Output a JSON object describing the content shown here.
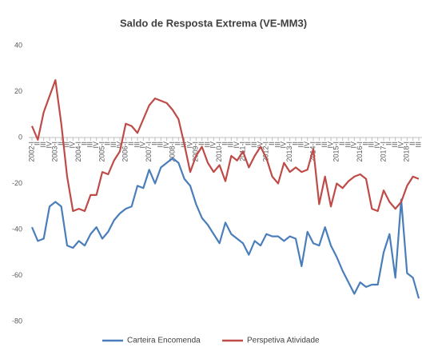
{
  "chart_data": {
    "type": "line",
    "title": "Saldo de Resposta Extrema (VE-MM3)",
    "categories": [
      "2002-I",
      "II",
      "III",
      "IV",
      "2003-I",
      "II",
      "III",
      "IV",
      "2004-I",
      "II",
      "III",
      "IV",
      "2005-I",
      "II",
      "III",
      "IV",
      "2006-I",
      "II",
      "III",
      "IV",
      "2007-I",
      "II",
      "III",
      "IV",
      "2008-I",
      "II",
      "III",
      "IV",
      "2009-I",
      "II",
      "III",
      "IV",
      "2010-I",
      "II",
      "III",
      "IV",
      "2011-I",
      "II",
      "III",
      "IV",
      "2012-I",
      "II",
      "III",
      "IV",
      "2013-I",
      "II",
      "III",
      "IV",
      "2014-I",
      "II",
      "III",
      "IV",
      "2015-I",
      "II",
      "III",
      "IV",
      "2016-I",
      "II",
      "III",
      "IV",
      "2017-I",
      "II",
      "III",
      "IV",
      "2018-I",
      "II",
      "III"
    ],
    "series": [
      {
        "name": "Carteira Encomenda",
        "color": "#4a7ebb",
        "values": [
          -39,
          -45,
          -44,
          -30,
          -28,
          -30,
          -47,
          -48,
          -45,
          -47,
          -42,
          -39,
          -44,
          -41,
          -36,
          -33,
          -31,
          -30,
          -21,
          -22,
          -14,
          -20,
          -13,
          -11,
          -9,
          -11,
          -18,
          -21,
          -29,
          -35,
          -38,
          -42,
          -46,
          -37,
          -42,
          -44,
          -46,
          -51,
          -45,
          -47,
          -42,
          -43,
          -43,
          -45,
          -43,
          -44,
          -56,
          -41,
          -46,
          -47,
          -39,
          -47,
          -52,
          -58,
          -63,
          -68,
          -63,
          -65,
          -64,
          -64,
          -50,
          -42,
          -61,
          -27,
          -59,
          -61,
          -70
        ]
      },
      {
        "name": "Perspetiva Atividade",
        "color": "#be4b48",
        "values": [
          5,
          -1,
          11,
          18,
          25,
          6,
          -17,
          -32,
          -31,
          -32,
          -25,
          -25,
          -15,
          -16,
          -10,
          -6,
          6,
          5,
          2,
          8,
          14,
          17,
          16,
          15,
          12,
          8,
          -3,
          -15,
          -8,
          -4,
          -11,
          -15,
          -12,
          -19,
          -8,
          -10,
          -6,
          -13,
          -8,
          -4,
          -9,
          -17,
          -20,
          -11,
          -15,
          -13,
          -15,
          -14,
          -5,
          -29,
          -17,
          -30,
          -20,
          -22,
          -19,
          -17,
          -16,
          -18,
          -31,
          -32,
          -23,
          -28,
          -31,
          -28,
          -21,
          -17,
          -18
        ]
      }
    ],
    "ylim": [
      -80,
      40
    ],
    "yticks": [
      -80,
      -60,
      -40,
      -20,
      0,
      20,
      40
    ],
    "grid": false,
    "legend": "bottom"
  }
}
